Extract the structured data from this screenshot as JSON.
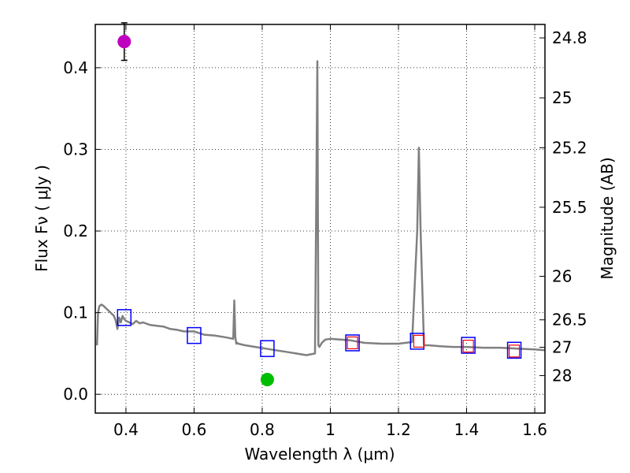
{
  "chart_data": {
    "type": "line",
    "title": "",
    "xlabel": "Wavelength  λ (μm)",
    "ylabel": "Flux  Fν  ( μJy )",
    "ylabel_right": "Magnitude (AB)",
    "xlim": [
      0.31,
      1.63
    ],
    "ylim": [
      -0.023,
      0.453
    ],
    "grid": true,
    "x_ticks": [
      0.4,
      0.6,
      0.8,
      1.0,
      1.2,
      1.4,
      1.6
    ],
    "x_tick_labels": [
      "0.4",
      "0.6",
      "0.8",
      "1",
      "1.2",
      "1.4",
      "1.6"
    ],
    "y_ticks": [
      0.0,
      0.1,
      0.2,
      0.3,
      0.4
    ],
    "y_tick_labels": [
      "0.0",
      "0.1",
      "0.2",
      "0.3",
      "0.4"
    ],
    "mag_ticks": [
      24.8,
      25,
      25.2,
      25.5,
      26,
      26.5,
      27,
      28
    ],
    "mag_tick_labels": [
      "24.8",
      "25",
      "25.2",
      "25.5",
      "26",
      "26.5",
      "27",
      "28"
    ],
    "series": [
      {
        "name": "model SED",
        "color": "#808080",
        "x": [
          0.315,
          0.318,
          0.322,
          0.328,
          0.335,
          0.345,
          0.355,
          0.365,
          0.37,
          0.375,
          0.38,
          0.385,
          0.39,
          0.395,
          0.4,
          0.41,
          0.42,
          0.43,
          0.44,
          0.45,
          0.47,
          0.49,
          0.51,
          0.53,
          0.55,
          0.57,
          0.6,
          0.63,
          0.66,
          0.69,
          0.715,
          0.718,
          0.721,
          0.724,
          0.727,
          0.73,
          0.75,
          0.78,
          0.81,
          0.84,
          0.87,
          0.9,
          0.93,
          0.955,
          0.962,
          0.965,
          0.968,
          0.971,
          0.975,
          0.985,
          1.0,
          1.03,
          1.06,
          1.1,
          1.15,
          1.2,
          1.24,
          1.255,
          1.26,
          1.265,
          1.275,
          1.29,
          1.32,
          1.36,
          1.4,
          1.45,
          1.5,
          1.55,
          1.6,
          1.63
        ],
        "values": [
          0.06,
          0.1,
          0.108,
          0.11,
          0.108,
          0.104,
          0.1,
          0.096,
          0.09,
          0.08,
          0.094,
          0.088,
          0.096,
          0.092,
          0.09,
          0.088,
          0.086,
          0.09,
          0.087,
          0.088,
          0.085,
          0.084,
          0.083,
          0.08,
          0.079,
          0.077,
          0.077,
          0.073,
          0.072,
          0.07,
          0.068,
          0.115,
          0.07,
          0.062,
          0.063,
          0.062,
          0.06,
          0.058,
          0.056,
          0.054,
          0.052,
          0.05,
          0.048,
          0.05,
          0.408,
          0.06,
          0.058,
          0.06,
          0.063,
          0.067,
          0.068,
          0.067,
          0.066,
          0.063,
          0.062,
          0.062,
          0.064,
          0.2,
          0.302,
          0.2,
          0.06,
          0.06,
          0.059,
          0.058,
          0.058,
          0.057,
          0.057,
          0.056,
          0.055,
          0.054
        ]
      }
    ],
    "photometry_blue_boxes": [
      {
        "x": 0.395,
        "y": 0.094
      },
      {
        "x": 0.6,
        "y": 0.072
      },
      {
        "x": 0.815,
        "y": 0.056
      },
      {
        "x": 1.065,
        "y": 0.063
      },
      {
        "x": 1.255,
        "y": 0.065
      },
      {
        "x": 1.405,
        "y": 0.06
      },
      {
        "x": 1.54,
        "y": 0.054
      }
    ],
    "photometry_red_boxes": [
      {
        "x": 1.065,
        "y": 0.063
      },
      {
        "x": 1.26,
        "y": 0.065
      },
      {
        "x": 1.405,
        "y": 0.059
      },
      {
        "x": 1.54,
        "y": 0.053
      }
    ],
    "observed_points": [
      {
        "name": "magenta point",
        "x": 0.395,
        "y": 0.432,
        "yerr": 0.023,
        "color": "#bf00bf"
      },
      {
        "name": "green point",
        "x": 0.815,
        "y": 0.018,
        "yerr": 0.005,
        "color": "#00bf00"
      }
    ],
    "colors": {
      "axes": "#000000",
      "grid": "#000000",
      "model": "#808080",
      "blue_box": "#0000ff",
      "red_box": "#ff0000"
    }
  }
}
